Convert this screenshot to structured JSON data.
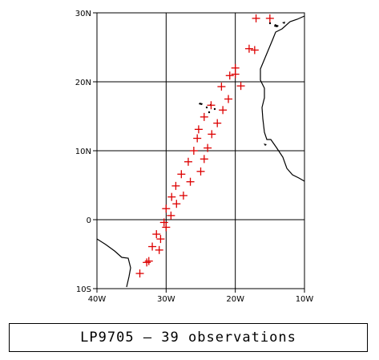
{
  "caption": "LP9705 — 39 observations",
  "axes": {
    "lon_ticks": [
      {
        "value": -40,
        "label": "40W"
      },
      {
        "value": -30,
        "label": "30W"
      },
      {
        "value": -20,
        "label": "20W"
      },
      {
        "value": -10,
        "label": "10W"
      }
    ],
    "lat_ticks": [
      {
        "value": 30,
        "label": "30N"
      },
      {
        "value": 20,
        "label": "20N"
      },
      {
        "value": 10,
        "label": "10N"
      },
      {
        "value": 0,
        "label": "0"
      },
      {
        "value": -10,
        "label": "10S"
      }
    ],
    "lon_range": [
      -40,
      -10
    ],
    "lat_range": [
      -10,
      30
    ],
    "grid": true
  },
  "colors": {
    "marker": "#dd0000",
    "grid": "#000000",
    "coast": "#000000"
  },
  "chart_data": {
    "type": "scatter",
    "title": "LP9705 — 39 observations",
    "xlabel": "",
    "ylabel": "",
    "xlim": [
      -40,
      -10
    ],
    "ylim": [
      -10,
      30
    ],
    "grid": true,
    "series": [
      {
        "marker": "plus",
        "lon": [
          -17.0,
          -15.0,
          -18.0,
          -17.2,
          -20.0,
          -19.2,
          -20.8,
          -20.0,
          -22.0,
          -21.0,
          -23.5,
          -21.8,
          -24.5,
          -22.6,
          -25.3,
          -23.4,
          -25.5,
          -24.0,
          -26.0,
          -24.5,
          -26.8,
          -25.0,
          -27.8,
          -26.5,
          -28.6,
          -27.5,
          -29.2,
          -28.5,
          -30.0,
          -29.3,
          -30.0,
          -30.3,
          -31.4,
          -30.8,
          -31.0,
          -32.0,
          -32.5,
          -32.8,
          -33.8
        ],
        "lat": [
          29.2,
          29.2,
          24.8,
          24.6,
          22.0,
          19.4,
          20.9,
          21.1,
          19.3,
          17.5,
          16.6,
          15.9,
          14.9,
          14.0,
          13.1,
          12.4,
          11.8,
          10.4,
          10.0,
          8.8,
          8.4,
          7.0,
          6.6,
          5.5,
          4.9,
          3.5,
          3.3,
          2.3,
          1.6,
          0.6,
          -1.1,
          -0.4,
          -2.1,
          -2.8,
          -4.4,
          -3.9,
          -6.0,
          -6.2,
          -7.8
        ]
      }
    ]
  }
}
